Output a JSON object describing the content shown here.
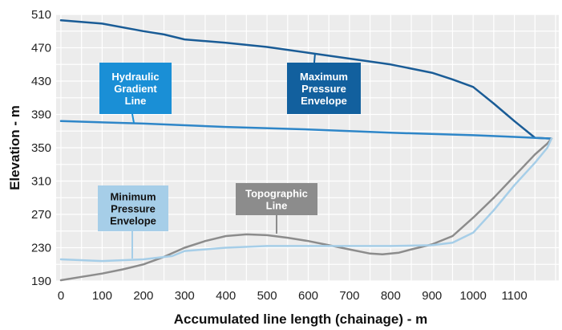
{
  "chart_data": {
    "type": "line",
    "title": "",
    "xlabel": "Accumulated line length (chainage) - m",
    "ylabel": "Elevation - m",
    "xlim": [
      0,
      1200
    ],
    "ylim": [
      190,
      510
    ],
    "x_ticks": [
      0,
      100,
      200,
      300,
      400,
      500,
      600,
      700,
      800,
      900,
      1000,
      1100
    ],
    "y_ticks": [
      190,
      230,
      270,
      310,
      350,
      390,
      430,
      470,
      510
    ],
    "grid": true,
    "series": [
      {
        "name": "Maximum Pressure Envelope",
        "color": "#1a5c96",
        "label_lines": [
          "Maximum",
          "Pressure",
          "Envelope"
        ],
        "points": [
          [
            0,
            503
          ],
          [
            100,
            499
          ],
          [
            200,
            490
          ],
          [
            250,
            486
          ],
          [
            300,
            480
          ],
          [
            400,
            476
          ],
          [
            500,
            471
          ],
          [
            600,
            464
          ],
          [
            700,
            457
          ],
          [
            800,
            450
          ],
          [
            900,
            440
          ],
          [
            950,
            432
          ],
          [
            1000,
            423
          ],
          [
            1050,
            403
          ],
          [
            1100,
            382
          ],
          [
            1150,
            362
          ],
          [
            1190,
            361
          ]
        ]
      },
      {
        "name": "Hydraulic Gradient Line",
        "color": "#2e86c8",
        "label_lines": [
          "Hydraulic",
          "Gradient",
          "Line"
        ],
        "points": [
          [
            0,
            382
          ],
          [
            200,
            379
          ],
          [
            400,
            375
          ],
          [
            600,
            372
          ],
          [
            800,
            368
          ],
          [
            1000,
            365
          ],
          [
            1100,
            363
          ],
          [
            1190,
            361
          ]
        ]
      },
      {
        "name": "Topographic Line",
        "color": "#8c8c8c",
        "label_lines": [
          "Topographic",
          "Line"
        ],
        "points": [
          [
            0,
            191
          ],
          [
            50,
            195
          ],
          [
            100,
            199
          ],
          [
            150,
            204
          ],
          [
            200,
            210
          ],
          [
            250,
            219
          ],
          [
            300,
            230
          ],
          [
            350,
            238
          ],
          [
            400,
            244
          ],
          [
            450,
            246
          ],
          [
            500,
            245
          ],
          [
            550,
            242
          ],
          [
            600,
            238
          ],
          [
            650,
            233
          ],
          [
            700,
            228
          ],
          [
            750,
            223
          ],
          [
            780,
            222
          ],
          [
            820,
            224
          ],
          [
            850,
            228
          ],
          [
            900,
            234
          ],
          [
            950,
            244
          ],
          [
            1000,
            266
          ],
          [
            1050,
            290
          ],
          [
            1100,
            316
          ],
          [
            1150,
            342
          ],
          [
            1180,
            355
          ],
          [
            1190,
            361
          ]
        ]
      },
      {
        "name": "Minimum Pressure Envelope",
        "color": "#a6cee8",
        "label_lines": [
          "Minimum",
          "Pressure",
          "Envelope"
        ],
        "points": [
          [
            0,
            216
          ],
          [
            100,
            214
          ],
          [
            200,
            216
          ],
          [
            270,
            220
          ],
          [
            300,
            226
          ],
          [
            400,
            230
          ],
          [
            500,
            232
          ],
          [
            600,
            232
          ],
          [
            700,
            232
          ],
          [
            800,
            232
          ],
          [
            900,
            233
          ],
          [
            950,
            236
          ],
          [
            1000,
            248
          ],
          [
            1050,
            275
          ],
          [
            1100,
            305
          ],
          [
            1150,
            332
          ],
          [
            1180,
            350
          ],
          [
            1190,
            361
          ]
        ]
      }
    ]
  }
}
